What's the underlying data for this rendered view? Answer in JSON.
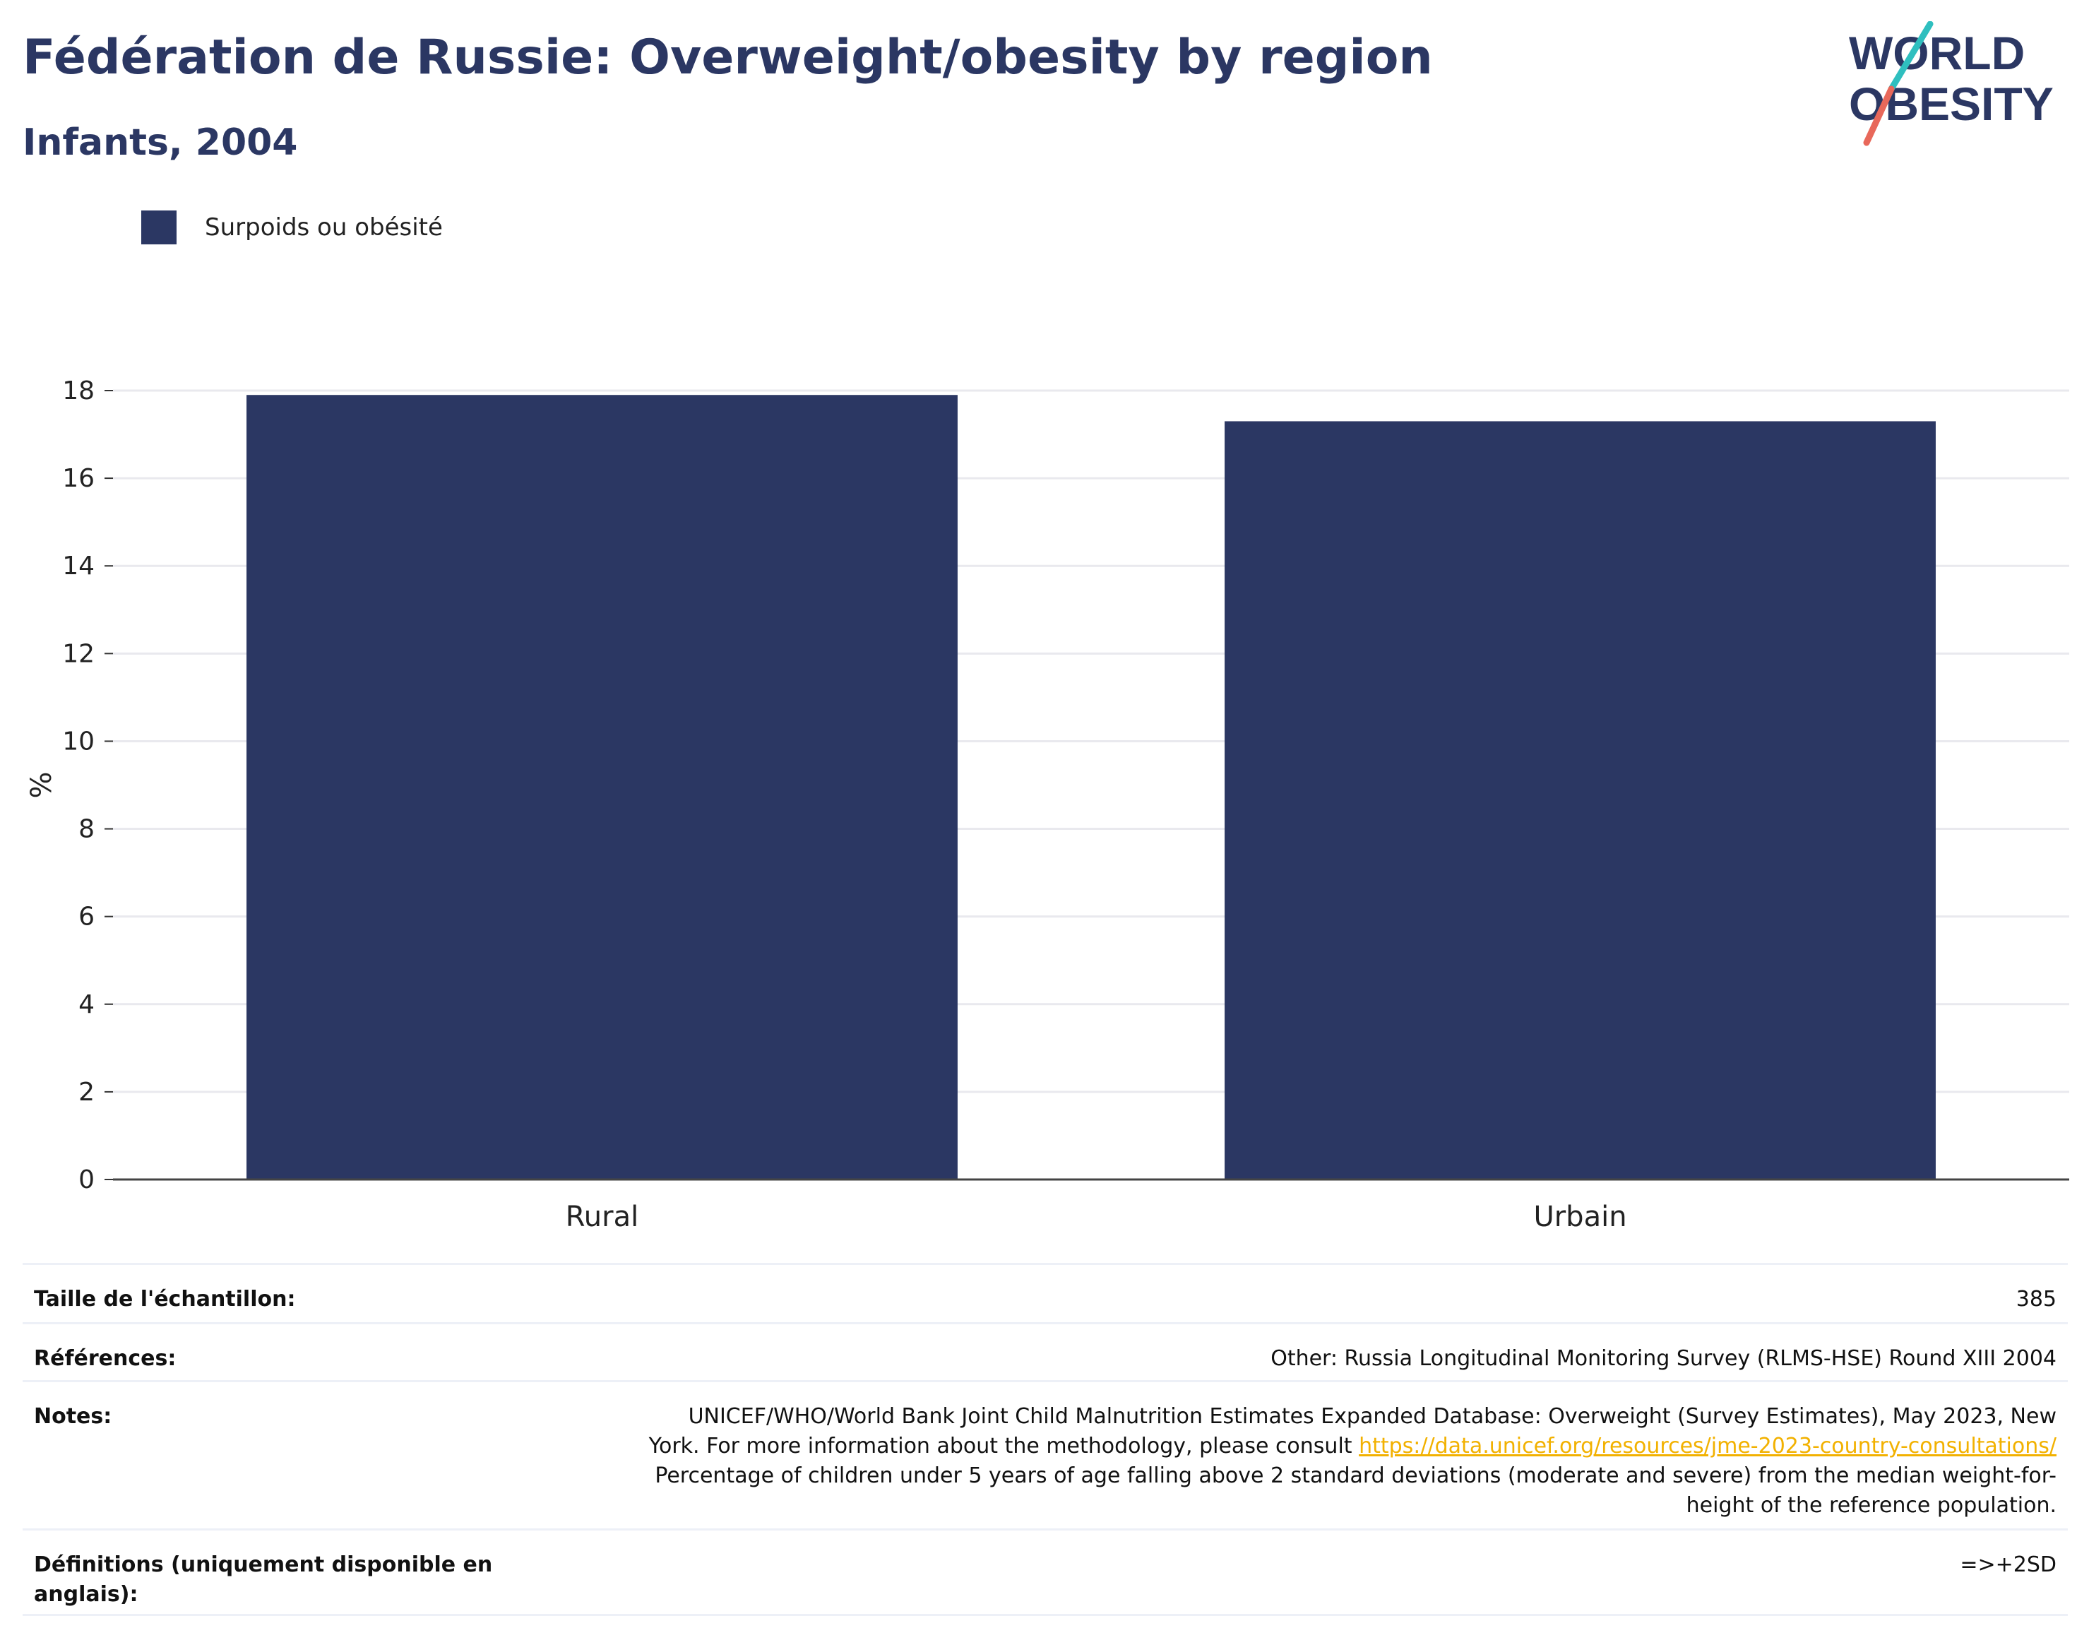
{
  "header": {
    "title": "Fédération de Russie: Overweight/obesity by region",
    "subtitle": "Infants, 2004"
  },
  "logo": {
    "line1": "WORLD",
    "line2": "OBESITY",
    "colors": {
      "text": "#2b3763",
      "slash_top": "#2fbfbf",
      "slash_bottom": "#e8685a"
    }
  },
  "legend": {
    "label": "Surpoids ou obésité",
    "color": "#2b3763"
  },
  "chart_data": {
    "type": "bar",
    "categories": [
      "Rural",
      "Urbain"
    ],
    "series": [
      {
        "name": "Surpoids ou obésité",
        "values": [
          17.9,
          17.3
        ],
        "color": "#2b3763"
      }
    ],
    "ylabel": "%",
    "ylim": [
      0,
      18
    ],
    "yticks": [
      0,
      2,
      4,
      6,
      8,
      10,
      12,
      14,
      16,
      18
    ],
    "grid": true,
    "legend_position": "top-left"
  },
  "footer": {
    "sample_size": {
      "label": "Taille de l'échantillon:",
      "value": "385"
    },
    "references": {
      "label": "Références:",
      "value": "Other: Russia Longitudinal Monitoring Survey (RLMS-HSE) Round XIII 2004"
    },
    "notes": {
      "label": "Notes:",
      "line1": "UNICEF/WHO/World Bank Joint Child Malnutrition Estimates Expanded Database: Overweight (Survey Estimates), May 2023, New",
      "line2_prefix": "York. For more information about the methodology, please consult",
      "link": "https://data.unicef.org/resources/jme-2023-country-consultations/",
      "line3": "Percentage of children under 5 years of age falling above 2 standard deviations (moderate and severe) from the median weight-for-",
      "line4": "height of the reference population."
    },
    "definitions": {
      "label": "Définitions (uniquement disponible en anglais):",
      "value": "=>+2SD"
    }
  }
}
